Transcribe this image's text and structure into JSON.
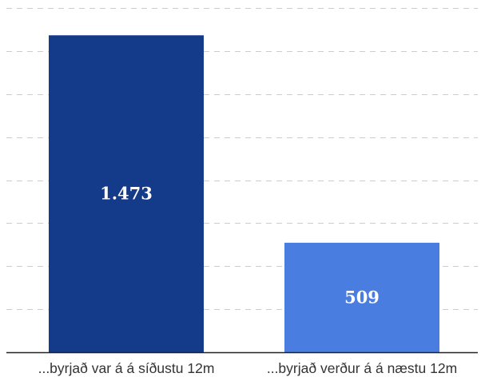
{
  "chart_data": {
    "type": "bar",
    "categories": [
      "...byrjað var á á síðustu 12m",
      "...byrjað verður á á næstu 12m"
    ],
    "values": [
      1473,
      509
    ],
    "value_labels": [
      "1.473",
      "509"
    ],
    "ylim": [
      0,
      1600
    ],
    "grid": true,
    "legend": "none",
    "colors": [
      "#143a8a",
      "#4a7de0"
    ],
    "grid_color": "#cccccc",
    "axis_color": "#222222"
  }
}
